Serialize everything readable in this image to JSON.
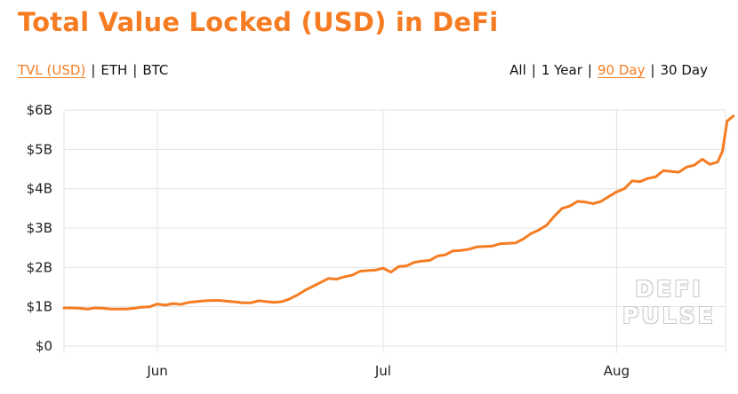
{
  "title": "Total Value Locked (USD) in DeFi",
  "metric_tabs": [
    {
      "label": "TVL (USD)",
      "active": true
    },
    {
      "label": "ETH",
      "active": false
    },
    {
      "label": "BTC",
      "active": false
    }
  ],
  "range_tabs": [
    {
      "label": "All",
      "active": false
    },
    {
      "label": "1 Year",
      "active": false
    },
    {
      "label": "90 Day",
      "active": true
    },
    {
      "label": "30 Day",
      "active": false
    }
  ],
  "separator": "|",
  "watermark": {
    "line1": "DEFI",
    "line2": "PULSE"
  },
  "colors": {
    "accent": "#f57c22",
    "line": "#f57c22",
    "grid": "#e3e3e3",
    "text": "#111111"
  },
  "chart_data": {
    "type": "line",
    "title": "",
    "xlabel": "",
    "ylabel": "",
    "ylim": [
      0,
      6
    ],
    "yticks": [
      0,
      1,
      2,
      3,
      4,
      5,
      6
    ],
    "ytick_labels": [
      "$0",
      "$1B",
      "$2B",
      "$3B",
      "$4B",
      "$5B",
      "$6B"
    ],
    "xlim": [
      0,
      85
    ],
    "xticks": [
      12,
      41,
      71
    ],
    "xtick_labels": [
      "Jun",
      "Jul",
      "Aug"
    ],
    "grid": true,
    "series": [
      {
        "values": [
          {
            "x": 0,
            "y": 0.97
          },
          {
            "x": 1,
            "y": 0.97
          },
          {
            "x": 2,
            "y": 0.96
          },
          {
            "x": 3,
            "y": 0.94
          },
          {
            "x": 4,
            "y": 0.97
          },
          {
            "x": 5,
            "y": 0.96
          },
          {
            "x": 6,
            "y": 0.94
          },
          {
            "x": 7,
            "y": 0.94
          },
          {
            "x": 8,
            "y": 0.94
          },
          {
            "x": 9,
            "y": 0.96
          },
          {
            "x": 10,
            "y": 0.99
          },
          {
            "x": 11,
            "y": 1.0
          },
          {
            "x": 12,
            "y": 1.07
          },
          {
            "x": 13,
            "y": 1.04
          },
          {
            "x": 14,
            "y": 1.08
          },
          {
            "x": 15,
            "y": 1.06
          },
          {
            "x": 16,
            "y": 1.11
          },
          {
            "x": 17,
            "y": 1.13
          },
          {
            "x": 18,
            "y": 1.15
          },
          {
            "x": 19,
            "y": 1.16
          },
          {
            "x": 20,
            "y": 1.16
          },
          {
            "x": 21,
            "y": 1.14
          },
          {
            "x": 22,
            "y": 1.12
          },
          {
            "x": 23,
            "y": 1.1
          },
          {
            "x": 24,
            "y": 1.1
          },
          {
            "x": 25,
            "y": 1.15
          },
          {
            "x": 26,
            "y": 1.13
          },
          {
            "x": 27,
            "y": 1.11
          },
          {
            "x": 28,
            "y": 1.13
          },
          {
            "x": 29,
            "y": 1.2
          },
          {
            "x": 30,
            "y": 1.3
          },
          {
            "x": 31,
            "y": 1.42
          },
          {
            "x": 32,
            "y": 1.52
          },
          {
            "x": 33,
            "y": 1.62
          },
          {
            "x": 34,
            "y": 1.72
          },
          {
            "x": 35,
            "y": 1.7
          },
          {
            "x": 36,
            "y": 1.76
          },
          {
            "x": 37,
            "y": 1.8
          },
          {
            "x": 38,
            "y": 1.9
          },
          {
            "x": 39,
            "y": 1.92
          },
          {
            "x": 40,
            "y": 1.93
          },
          {
            "x": 41,
            "y": 1.98
          },
          {
            "x": 42,
            "y": 1.88
          },
          {
            "x": 43,
            "y": 2.02
          },
          {
            "x": 44,
            "y": 2.04
          },
          {
            "x": 45,
            "y": 2.13
          },
          {
            "x": 46,
            "y": 2.16
          },
          {
            "x": 47,
            "y": 2.18
          },
          {
            "x": 48,
            "y": 2.29
          },
          {
            "x": 49,
            "y": 2.32
          },
          {
            "x": 50,
            "y": 2.42
          },
          {
            "x": 51,
            "y": 2.43
          },
          {
            "x": 52,
            "y": 2.46
          },
          {
            "x": 53,
            "y": 2.52
          },
          {
            "x": 54,
            "y": 2.53
          },
          {
            "x": 55,
            "y": 2.54
          },
          {
            "x": 56,
            "y": 2.6
          },
          {
            "x": 57,
            "y": 2.61
          },
          {
            "x": 58,
            "y": 2.62
          },
          {
            "x": 59,
            "y": 2.72
          },
          {
            "x": 60,
            "y": 2.86
          },
          {
            "x": 61,
            "y": 2.95
          },
          {
            "x": 62,
            "y": 3.07
          },
          {
            "x": 63,
            "y": 3.3
          },
          {
            "x": 64,
            "y": 3.5
          },
          {
            "x": 65,
            "y": 3.56
          },
          {
            "x": 66,
            "y": 3.68
          },
          {
            "x": 67,
            "y": 3.66
          },
          {
            "x": 68,
            "y": 3.62
          },
          {
            "x": 69,
            "y": 3.68
          },
          {
            "x": 70,
            "y": 3.8
          },
          {
            "x": 71,
            "y": 3.92
          },
          {
            "x": 72,
            "y": 4.0
          },
          {
            "x": 73,
            "y": 4.2
          },
          {
            "x": 74,
            "y": 4.18
          },
          {
            "x": 75,
            "y": 4.26
          },
          {
            "x": 76,
            "y": 4.3
          },
          {
            "x": 77,
            "y": 4.46
          },
          {
            "x": 78,
            "y": 4.44
          },
          {
            "x": 79,
            "y": 4.42
          },
          {
            "x": 80,
            "y": 4.55
          },
          {
            "x": 81,
            "y": 4.6
          },
          {
            "x": 82,
            "y": 4.75
          },
          {
            "x": 83,
            "y": 4.62
          },
          {
            "x": 84,
            "y": 4.68
          },
          {
            "x": 84.6,
            "y": 4.95
          },
          {
            "x": 85.2,
            "y": 5.72
          },
          {
            "x": 86,
            "y": 5.85
          }
        ]
      }
    ]
  }
}
